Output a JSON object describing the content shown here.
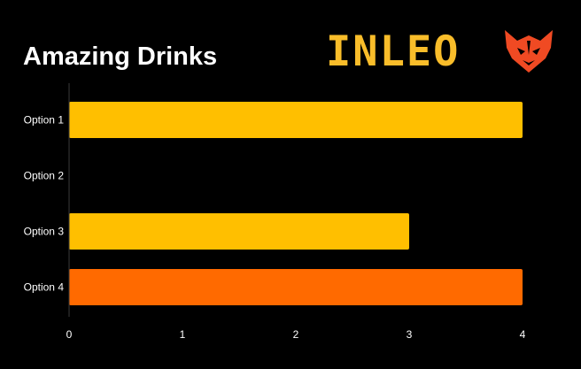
{
  "brand": {
    "wordmark": "INLEO",
    "logo_icon": "lion-head-icon",
    "wordmark_color": "#f9bd2a",
    "logo_color": "#f04a23"
  },
  "chart_data": {
    "type": "bar",
    "orientation": "horizontal",
    "title": "Amazing Drinks",
    "xlabel": "",
    "ylabel": "",
    "categories": [
      "Option 1",
      "Option 2",
      "Option 3",
      "Option 4"
    ],
    "values": [
      4,
      0,
      3,
      4
    ],
    "bar_colors": [
      "#ffbf00",
      "#ffbf00",
      "#ffbf00",
      "#ff6a00"
    ],
    "xlim": [
      0,
      4
    ],
    "x_ticks": [
      0,
      1,
      2,
      3,
      4
    ],
    "grid": false,
    "legend": "none",
    "background": "#000000",
    "axis_color": "#3a3a3a",
    "text_color": "#ffffff"
  }
}
